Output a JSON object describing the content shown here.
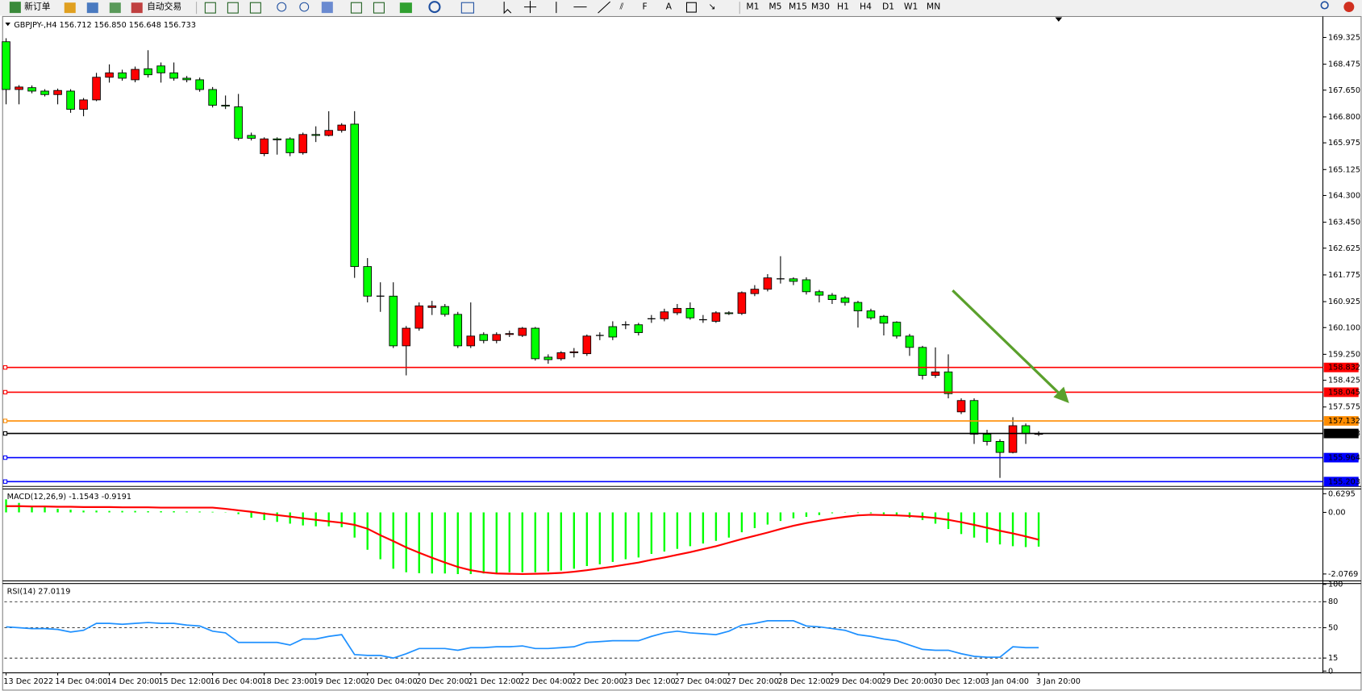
{
  "toolbar": {
    "buttons": [
      "新订单",
      "自动交易"
    ],
    "timeframes": [
      "M1",
      "M5",
      "M15",
      "M30",
      "H1",
      "H4",
      "D1",
      "W1",
      "MN"
    ]
  },
  "chart_data": [
    {
      "type": "candlestick",
      "title": "GBPJPY-,H4  156.712 156.850 156.648 156.733",
      "categories": [
        "13 Dec 2022",
        null,
        null,
        null,
        "14 Dec 04:00",
        null,
        null,
        null,
        "14 Dec 20:00",
        null,
        null,
        null,
        "15 Dec 12:00",
        null,
        null,
        null,
        "16 Dec 04:00",
        null,
        null,
        null,
        "18 Dec 23:00",
        null,
        null,
        null,
        "19 Dec 12:00",
        null,
        null,
        null,
        "20 Dec 04:00",
        null,
        null,
        null,
        "20 Dec 20:00",
        null,
        null,
        null,
        "21 Dec 12:00",
        null,
        null,
        null,
        "22 Dec 04:00",
        null,
        null,
        null,
        "22 Dec 20:00",
        null,
        null,
        null,
        "23 Dec 12:00",
        null,
        null,
        null,
        "27 Dec 04:00",
        null,
        null,
        null,
        "27 Dec 20:00",
        null,
        null,
        null,
        "28 Dec 12:00",
        null,
        null,
        null,
        "29 Dec 04:00",
        null,
        null,
        null,
        "29 Dec 20:00",
        null,
        null,
        null,
        "30 Dec 12:00",
        null,
        null,
        null,
        "3 Jan 04:00",
        null,
        null,
        null,
        "3 Jan 20:00"
      ],
      "open": [
        169.19,
        167.67,
        167.73,
        167.62,
        167.51,
        167.62,
        167.04,
        167.34,
        168.06,
        168.2,
        167.98,
        168.33,
        168.42,
        168.2,
        168.03,
        167.98,
        167.67,
        167.17,
        167.12,
        166.21,
        165.63,
        166.1,
        166.1,
        165.66,
        166.24,
        166.21,
        166.37,
        166.57,
        162.04,
        161.1,
        161.1,
        159.52,
        160.08,
        160.74,
        160.77,
        160.52,
        159.52,
        159.88,
        159.69,
        159.88,
        159.85,
        160.08,
        159.16,
        159.11,
        159.3,
        159.27,
        159.85,
        160.13,
        160.19,
        160.19,
        160.38,
        160.38,
        160.57,
        160.71,
        160.35,
        160.3,
        160.57,
        160.55,
        161.18,
        161.32,
        161.65,
        161.65,
        161.62,
        161.24,
        161.13,
        161.04,
        160.9,
        160.63,
        160.46,
        160.27,
        159.83,
        159.47,
        158.58,
        158.69,
        157.42,
        157.78,
        156.71,
        156.48,
        156.13,
        156.98,
        156.73
      ],
      "high": [
        169.3,
        167.81,
        167.8,
        167.68,
        167.7,
        167.68,
        167.4,
        168.2,
        168.47,
        168.3,
        168.4,
        168.92,
        168.53,
        168.53,
        168.1,
        168.05,
        167.75,
        167.48,
        167.53,
        166.3,
        166.15,
        166.15,
        166.15,
        166.3,
        166.5,
        166.98,
        166.6,
        166.98,
        162.31,
        161.54,
        161.54,
        160.15,
        160.9,
        160.95,
        160.85,
        160.6,
        160.9,
        159.95,
        159.95,
        160.0,
        160.12,
        160.12,
        159.25,
        159.35,
        159.45,
        159.88,
        159.95,
        160.3,
        160.3,
        160.25,
        160.5,
        160.7,
        160.85,
        160.9,
        160.5,
        160.62,
        160.62,
        161.25,
        161.45,
        161.8,
        162.37,
        161.7,
        161.7,
        161.3,
        161.2,
        161.1,
        160.95,
        160.7,
        160.5,
        160.3,
        159.9,
        159.52,
        159.47,
        159.25,
        157.85,
        157.85,
        156.85,
        156.55,
        157.25,
        157.05,
        156.8
      ],
      "low": [
        167.2,
        167.2,
        167.55,
        167.45,
        167.2,
        166.93,
        166.82,
        167.3,
        167.89,
        167.95,
        167.9,
        168.05,
        167.89,
        167.95,
        167.9,
        167.6,
        167.1,
        167.05,
        166.05,
        166.05,
        165.55,
        165.6,
        165.55,
        165.6,
        166.0,
        166.18,
        166.3,
        161.68,
        160.9,
        160.6,
        159.45,
        158.58,
        160.0,
        160.5,
        160.45,
        159.45,
        159.45,
        159.6,
        159.6,
        159.8,
        159.8,
        159.05,
        158.95,
        159.05,
        159.15,
        159.2,
        159.7,
        159.7,
        160.05,
        159.85,
        160.25,
        160.3,
        160.5,
        160.35,
        160.25,
        160.25,
        160.5,
        160.5,
        161.1,
        161.25,
        161.5,
        161.45,
        161.15,
        160.9,
        160.85,
        160.8,
        160.1,
        160.35,
        159.85,
        159.75,
        159.2,
        158.45,
        158.5,
        157.85,
        157.35,
        156.4,
        156.35,
        155.32,
        156.1,
        156.4,
        156.65
      ],
      "close": [
        167.67,
        167.75,
        167.62,
        167.51,
        167.64,
        167.04,
        167.34,
        168.06,
        168.2,
        168.03,
        168.31,
        168.14,
        168.2,
        168.03,
        167.98,
        167.67,
        167.17,
        167.15,
        166.12,
        166.12,
        166.1,
        166.07,
        165.66,
        166.24,
        166.21,
        166.37,
        166.54,
        162.04,
        161.1,
        161.1,
        159.52,
        160.08,
        160.79,
        160.79,
        160.52,
        159.52,
        159.83,
        159.69,
        159.88,
        159.91,
        160.08,
        159.11,
        159.08,
        159.3,
        159.33,
        159.83,
        159.85,
        159.8,
        160.19,
        159.94,
        160.38,
        160.6,
        160.71,
        160.41,
        160.35,
        160.57,
        160.55,
        161.21,
        161.32,
        161.68,
        161.65,
        161.57,
        161.24,
        161.13,
        160.99,
        160.9,
        160.63,
        160.41,
        160.24,
        159.83,
        159.47,
        158.58,
        158.69,
        158.0,
        157.78,
        156.71,
        156.48,
        156.13,
        156.98,
        156.73,
        156.733
      ],
      "up_color": "#ff0000",
      "down_color": "#00ff00",
      "ylim": [
        155.05,
        169.91
      ],
      "yticks": [
        169.325,
        168.475,
        {
          "value": 167.65,
          "label": "167.650"
        },
        {
          "value": 166.8,
          "label": "166.800"
        },
        165.975,
        165.125,
        {
          "value": 164.3,
          "label": "164.300"
        },
        {
          "value": 163.45,
          "label": "163.450"
        },
        162.625,
        161.775,
        160.925,
        {
          "value": 160.1,
          "label": "160.100"
        },
        {
          "value": 159.25,
          "label": "159.250"
        },
        158.425,
        157.575
      ],
      "hlines": [
        {
          "value": 158.832,
          "color": "#ff0000"
        },
        {
          "value": 158.045,
          "color": "#ff0000"
        },
        {
          "value": 157.132,
          "color": "#ff8c00"
        },
        {
          "value": 156.733,
          "color": "#000000"
        },
        {
          "value": 155.964,
          "color": "#0000ff"
        },
        {
          "value": 155.203,
          "color": "#0000ff"
        }
      ]
    },
    {
      "type": "macd",
      "title": "MACD(12,26,9) -1.1543 -0.9191",
      "histogram": [
        0.44,
        0.32,
        0.23,
        0.18,
        0.12,
        0.09,
        0.06,
        0.06,
        0.05,
        0.05,
        0.05,
        0.04,
        0.04,
        0.04,
        0.03,
        0.03,
        0.02,
        0.01,
        -0.06,
        -0.18,
        -0.26,
        -0.32,
        -0.38,
        -0.44,
        -0.47,
        -0.47,
        -0.5,
        -0.85,
        -1.26,
        -1.58,
        -1.9,
        -2.02,
        -2.05,
        -2.06,
        -2.06,
        -2.08,
        -2.08,
        -2.06,
        -2.05,
        -2.02,
        -2.02,
        -2.02,
        -1.99,
        -1.96,
        -1.9,
        -1.81,
        -1.75,
        -1.67,
        -1.58,
        -1.52,
        -1.4,
        -1.32,
        -1.23,
        -1.14,
        -1.05,
        -0.96,
        -0.85,
        -0.67,
        -0.53,
        -0.41,
        -0.29,
        -0.2,
        -0.15,
        -0.09,
        -0.03,
        0.01,
        -0.02,
        -0.03,
        -0.06,
        -0.12,
        -0.18,
        -0.26,
        -0.38,
        -0.56,
        -0.73,
        -0.85,
        -1.02,
        -1.08,
        -1.14,
        -1.17,
        -1.1543
      ],
      "signal": [
        0.21,
        0.21,
        0.2,
        0.2,
        0.19,
        0.19,
        0.18,
        0.18,
        0.18,
        0.17,
        0.17,
        0.17,
        0.16,
        0.16,
        0.16,
        0.16,
        0.16,
        0.12,
        0.07,
        0.02,
        -0.04,
        -0.09,
        -0.14,
        -0.2,
        -0.25,
        -0.3,
        -0.35,
        -0.42,
        -0.55,
        -0.77,
        -0.97,
        -1.18,
        -1.36,
        -1.53,
        -1.69,
        -1.84,
        -1.95,
        -2.02,
        -2.06,
        -2.07,
        -2.08,
        -2.07,
        -2.06,
        -2.04,
        -2.0,
        -1.95,
        -1.89,
        -1.83,
        -1.76,
        -1.69,
        -1.6,
        -1.52,
        -1.43,
        -1.34,
        -1.24,
        -1.14,
        -1.02,
        -0.9,
        -0.79,
        -0.68,
        -0.56,
        -0.45,
        -0.36,
        -0.28,
        -0.21,
        -0.15,
        -0.1,
        -0.08,
        -0.09,
        -0.1,
        -0.12,
        -0.15,
        -0.19,
        -0.25,
        -0.33,
        -0.42,
        -0.52,
        -0.62,
        -0.71,
        -0.81,
        -0.9191
      ],
      "histogram_color": "#00ff00",
      "signal_color": "#ff0000",
      "ylim": [
        -2.31,
        0.76
      ],
      "yticks": [
        0.6295,
        {
          "value": 0,
          "label": "0.00"
        },
        -2.0769
      ]
    },
    {
      "type": "line",
      "title": "RSI(14) 27.0119",
      "values": [
        51,
        50,
        49,
        49,
        48,
        45,
        47,
        55,
        55,
        54,
        55,
        56,
        55,
        55,
        53,
        52,
        46,
        44,
        33,
        33,
        33,
        33,
        30,
        37,
        37,
        40,
        42,
        19,
        18,
        18,
        15,
        20,
        26,
        26,
        26,
        24,
        27,
        27,
        28,
        28,
        29,
        26,
        26,
        27,
        28,
        33,
        34,
        35,
        35,
        35,
        40,
        44,
        46,
        44,
        43,
        42,
        46,
        53,
        55,
        58,
        58,
        58,
        52,
        51,
        49,
        47,
        42,
        40,
        37,
        35,
        30,
        25,
        24,
        24,
        20,
        17,
        16,
        16,
        28,
        27,
        27.0119
      ],
      "color": "#1e90ff",
      "ylim": [
        0,
        100
      ],
      "yticks": [
        100,
        80,
        50,
        15,
        0
      ]
    }
  ]
}
